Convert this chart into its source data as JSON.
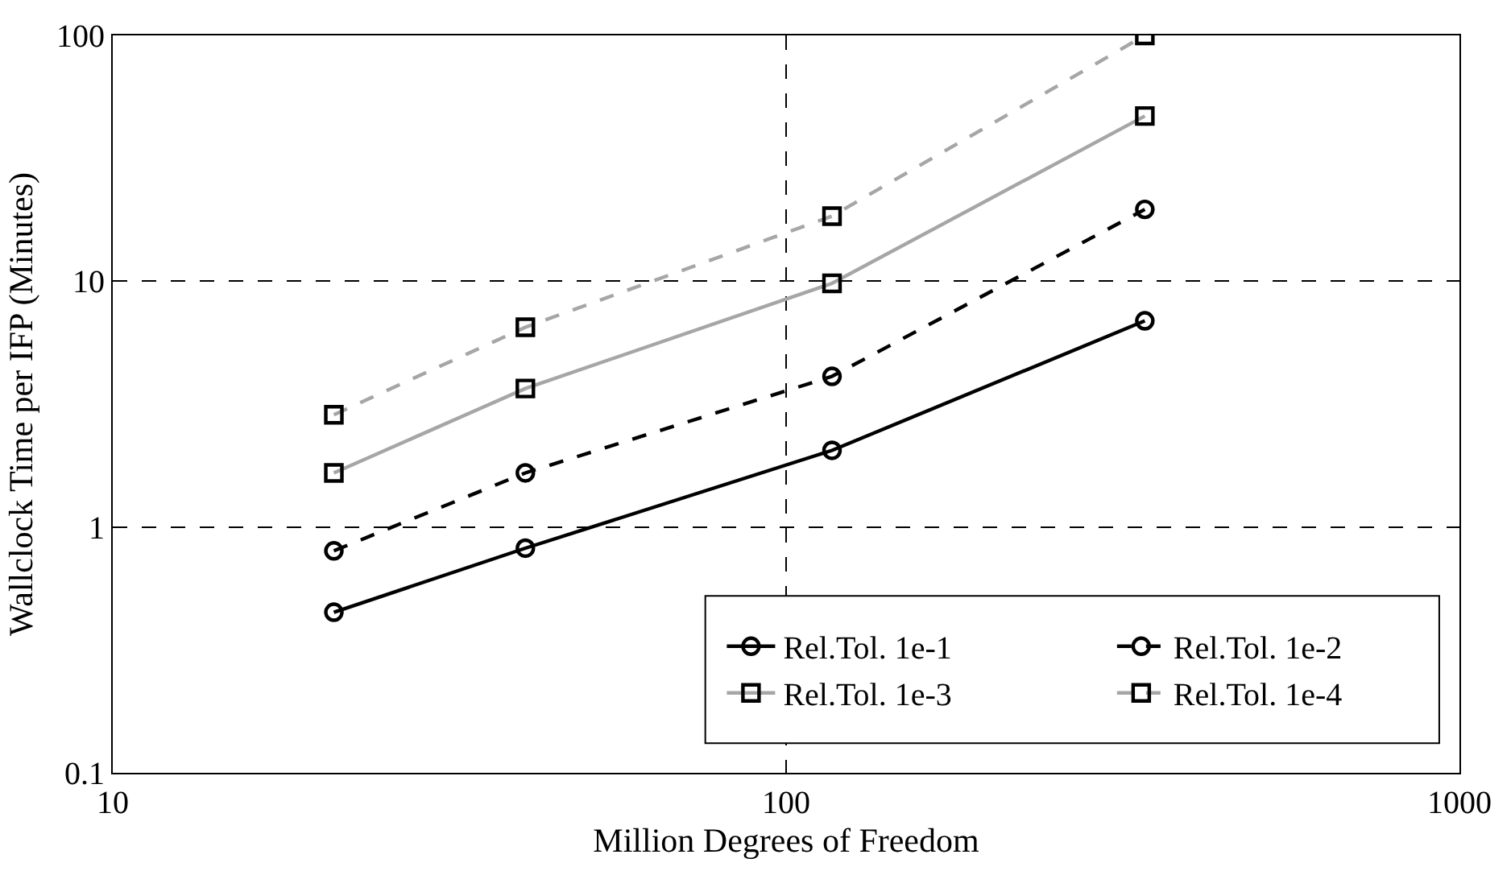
{
  "chart_data": {
    "type": "line",
    "xlabel": "Million Degrees of Freedom",
    "ylabel": "Wallclock Time per IFP (Minutes)",
    "log": "xy",
    "grid": true,
    "legend": "bottom right",
    "xlim": [
      10,
      1000
    ],
    "xticks": [
      10,
      100,
      1000
    ],
    "ylim": [
      0.1,
      100
    ],
    "yticks": [
      0.1,
      1,
      10,
      100
    ],
    "x": [
      21.3,
      41,
      117,
      341
    ],
    "series": [
      {
        "name": "Rel.Tol. 1e-1",
        "color": "#000000",
        "marker": "circle",
        "line_style": "solid",
        "values": [
          0.45,
          0.82,
          2.05,
          6.9
        ]
      },
      {
        "name": "Rel.Tol. 1e-2",
        "color": "#000000",
        "marker": "circle",
        "line_style": "dashed",
        "values": [
          0.8,
          1.66,
          4.1,
          19.6
        ]
      },
      {
        "name": "Rel.Tol. 1e-3",
        "color": "#a6a6a6",
        "marker": "square",
        "line_style": "solid",
        "values": [
          1.66,
          3.66,
          9.8,
          47
        ]
      },
      {
        "name": "Rel.Tol. 1e-4",
        "color": "#a6a6a6",
        "marker": "square",
        "line_style": "dashed",
        "values": [
          2.86,
          6.5,
          18.4,
          100
        ]
      }
    ]
  }
}
